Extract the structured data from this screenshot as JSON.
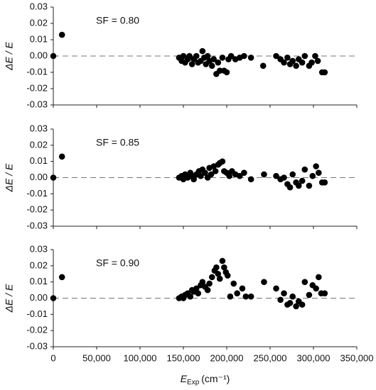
{
  "chart_data": [
    {
      "type": "scatter",
      "ylabel": "ΔE / E",
      "annotation": "SF = 0.80",
      "color": "#000000",
      "xlim": [
        0,
        350000
      ],
      "ylim": [
        -0.03,
        0.03
      ],
      "yticks": [
        -0.03,
        -0.02,
        -0.01,
        {
          "value": 0,
          "label": "0.00"
        },
        0.01,
        0.02,
        0.03
      ],
      "x": [
        0,
        10000,
        145000,
        148000,
        150000,
        152000,
        155000,
        157000,
        160000,
        162000,
        165000,
        167000,
        170000,
        172000,
        174000,
        176000,
        178000,
        180000,
        183000,
        185000,
        188000,
        190000,
        192000,
        195000,
        197000,
        200000,
        202000,
        205000,
        210000,
        215000,
        220000,
        228000,
        242000,
        257000,
        262000,
        266000,
        270000,
        273000,
        276000,
        280000,
        283000,
        287000,
        290000,
        295000,
        298000,
        302000,
        305000,
        310000,
        313000
      ],
      "values": [
        0,
        0.013,
        -0.001,
        -0.003,
        0.0,
        -0.004,
        -0.002,
        0.0,
        -0.005,
        -0.002,
        0.0,
        -0.004,
        -0.003,
        0.003,
        -0.001,
        -0.005,
        0.0,
        -0.003,
        -0.006,
        -0.002,
        -0.011,
        -0.004,
        -0.009,
        -0.001,
        -0.009,
        -0.01,
        -0.002,
        0.0,
        -0.002,
        -0.001,
        0.0,
        -0.001,
        -0.006,
        0.0,
        -0.002,
        -0.004,
        -0.001,
        -0.005,
        -0.003,
        -0.006,
        -0.002,
        -0.004,
        0.0,
        -0.006,
        -0.004,
        0.0,
        -0.003,
        -0.01,
        -0.01
      ]
    },
    {
      "type": "scatter",
      "ylabel": "ΔE / E",
      "annotation": "SF = 0.85",
      "color": "#000000",
      "xlim": [
        0,
        350000
      ],
      "ylim": [
        -0.03,
        0.03
      ],
      "yticks": [
        -0.03,
        -0.02,
        -0.01,
        {
          "value": 0,
          "label": "0.00"
        },
        0.01,
        0.02,
        0.03
      ],
      "x": [
        0,
        10000,
        145000,
        148000,
        150000,
        152000,
        155000,
        158000,
        160000,
        162000,
        165000,
        168000,
        170000,
        172000,
        175000,
        178000,
        180000,
        182000,
        185000,
        187000,
        190000,
        192000,
        195000,
        197000,
        200000,
        203000,
        206000,
        210000,
        215000,
        220000,
        228000,
        243000,
        257000,
        262000,
        266000,
        270000,
        273000,
        276000,
        280000,
        283000,
        287000,
        290000,
        295000,
        299000,
        303000,
        306000,
        310000,
        313000
      ],
      "values": [
        0,
        0.013,
        0.0,
        0.001,
        -0.001,
        0.002,
        0.0,
        0.003,
        0.001,
        -0.001,
        0.002,
        0.004,
        0.001,
        0.005,
        0.003,
        0.0,
        0.006,
        0.002,
        0.007,
        0.004,
        0.008,
        0.009,
        0.01,
        0.004,
        0.003,
        0.001,
        0.004,
        0.002,
        0.001,
        0.003,
        -0.001,
        0.002,
        0.001,
        -0.001,
        0.0,
        -0.004,
        -0.006,
        0.002,
        -0.003,
        -0.005,
        -0.002,
        0.005,
        -0.005,
        0.001,
        0.007,
        0.003,
        -0.003,
        -0.003
      ]
    },
    {
      "type": "scatter",
      "ylabel": "ΔE / E",
      "annotation": "SF = 0.90",
      "color": "#000000",
      "xlim": [
        0,
        350000
      ],
      "ylim": [
        -0.03,
        0.03
      ],
      "yticks": [
        -0.03,
        -0.02,
        -0.01,
        {
          "value": 0,
          "label": "0.00"
        },
        0.01,
        0.02,
        0.03
      ],
      "xticks": [
        0,
        {
          "value": 50000,
          "label": "50,000"
        },
        {
          "value": 100000,
          "label": "100,000"
        },
        {
          "value": 150000,
          "label": "150,000"
        },
        {
          "value": 200000,
          "label": "200,000"
        },
        {
          "value": 250000,
          "label": "250,000"
        },
        {
          "value": 300000,
          "label": "300,000"
        },
        {
          "value": 350000,
          "label": "350,000"
        }
      ],
      "xlabel": {
        "symbol": "E",
        "subscript": "Exp",
        "unit": "(cm⁻¹)"
      },
      "x": [
        0,
        10000,
        145000,
        148000,
        150000,
        152000,
        155000,
        158000,
        160000,
        162000,
        165000,
        167000,
        170000,
        172000,
        175000,
        178000,
        180000,
        183000,
        186000,
        188000,
        190000,
        192000,
        195000,
        197000,
        199000,
        201000,
        204000,
        208000,
        212000,
        218000,
        222000,
        228000,
        243000,
        257000,
        262000,
        266000,
        270000,
        273000,
        276000,
        280000,
        283000,
        287000,
        290000,
        295000,
        299000,
        303000,
        306000,
        309000,
        313000
      ],
      "values": [
        0,
        0.013,
        0.0,
        0.001,
        0.0,
        0.002,
        0.003,
        0.001,
        0.005,
        0.004,
        0.006,
        0.003,
        0.008,
        0.01,
        0.007,
        0.005,
        0.009,
        0.013,
        0.017,
        0.019,
        0.015,
        0.012,
        0.023,
        0.019,
        0.016,
        0.014,
        0.001,
        0.009,
        0.003,
        0.006,
        0.001,
        0.001,
        0.01,
        0.006,
        -0.001,
        0.003,
        -0.004,
        -0.003,
        0.001,
        -0.005,
        -0.002,
        -0.004,
        0.01,
        0.002,
        0.008,
        0.006,
        0.013,
        0.003,
        0.003
      ]
    }
  ]
}
